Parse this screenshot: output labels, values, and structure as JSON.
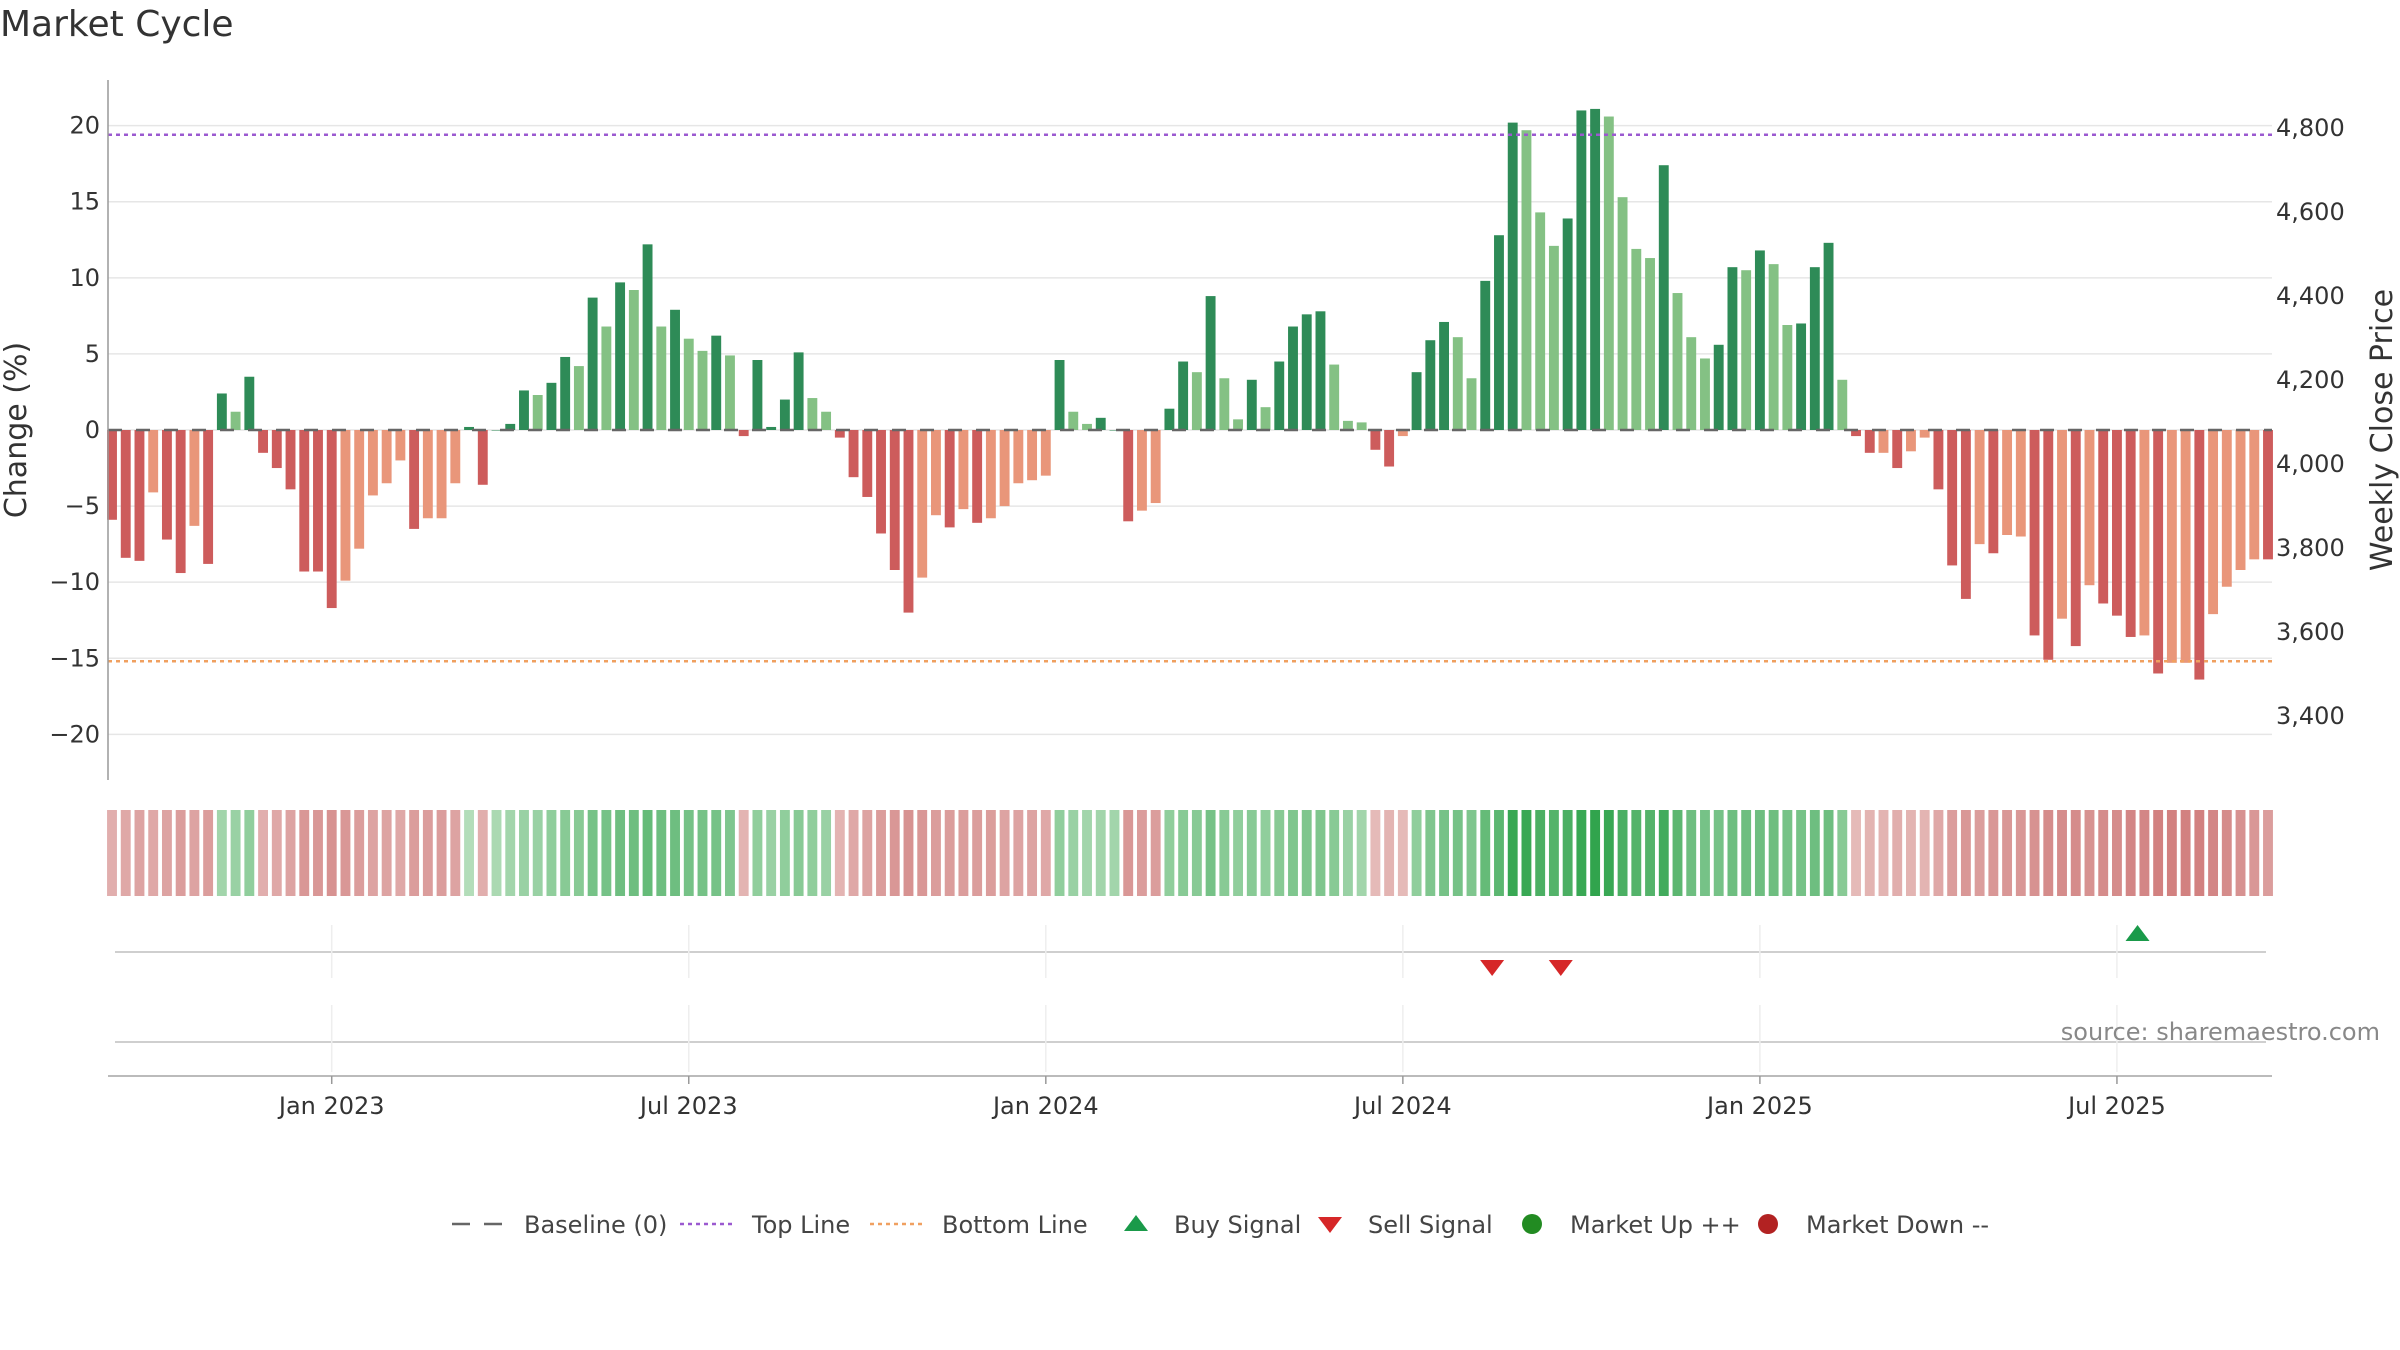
{
  "title": "Market Cycle",
  "source": "source: sharemaestro.com",
  "colors": {
    "up_strong": "#2e8b57",
    "up_light": "#84c184",
    "down_strong": "#cd5c5c",
    "down_light": "#e9967a",
    "top_line": "#9b59d0",
    "bottom_line": "#f0a060",
    "baseline": "#666666",
    "buy": "#1a9a4a",
    "sell": "#d62728",
    "market_up": "#228b22",
    "market_down": "#b22222"
  },
  "chart_data": {
    "type": "bar",
    "left_axis": {
      "title": "Change (%)",
      "ticks": [
        20,
        15,
        10,
        5,
        0,
        -5,
        -10,
        -15,
        -20
      ],
      "tick_labels": [
        "20",
        "15",
        "10",
        "5",
        "0",
        "−5",
        "−10",
        "−15",
        "−20"
      ],
      "range": [
        -23,
        23
      ]
    },
    "right_axis": {
      "title": "Weekly Close Price",
      "tick_labels": [
        "4,800",
        "4,600",
        "4,400",
        "4,200",
        "4,000",
        "3,800",
        "3,600",
        "3,400"
      ]
    },
    "x_tick_labels": [
      "Jan 2023",
      "Jul 2023",
      "Jan 2024",
      "Jul 2024",
      "Jan 2025",
      "Jul 2025"
    ],
    "x_tick_weeks": [
      16,
      42,
      68,
      94,
      120,
      146
    ],
    "top_line": 19.4,
    "bottom_line": -15.2,
    "weekly_change": [
      -5.9,
      -8.4,
      -8.6,
      -4.1,
      -7.2,
      -9.4,
      -6.3,
      -8.8,
      2.4,
      1.2,
      3.5,
      -1.5,
      -2.5,
      -3.9,
      -9.3,
      -9.3,
      -11.7,
      -9.9,
      -7.8,
      -4.3,
      -3.5,
      -2.0,
      -6.5,
      -5.8,
      -5.8,
      -3.5,
      0.2,
      -3.6,
      0,
      0.4,
      2.6,
      2.3,
      3.1,
      4.8,
      4.2,
      8.7,
      6.8,
      9.7,
      9.2,
      12.2,
      6.8,
      7.9,
      6.0,
      5.2,
      6.2,
      4.9,
      -0.4,
      4.6,
      0.2,
      2.0,
      5.1,
      2.1,
      1.2,
      -0.5,
      -3.1,
      -4.4,
      -6.8,
      -9.2,
      -12.0,
      -9.7,
      -5.6,
      -6.4,
      -5.2,
      -6.1,
      -5.8,
      -5.0,
      -3.5,
      -3.3,
      -3.0,
      4.6,
      1.2,
      0.4,
      0.8,
      0,
      -6.0,
      -5.3,
      -4.8,
      1.4,
      4.5,
      3.8,
      8.8,
      3.4,
      0.7,
      3.3,
      1.5,
      4.5,
      6.8,
      7.6,
      7.8,
      4.3,
      0.6,
      0.5,
      -1.3,
      -2.4,
      -0.4,
      3.8,
      5.9,
      7.1,
      6.1,
      3.4,
      9.8,
      12.8,
      20.2,
      19.7,
      14.3,
      12.1,
      13.9,
      21.0,
      21.1,
      20.6,
      15.3,
      11.9,
      11.3,
      17.4,
      9.0,
      6.1,
      4.7,
      5.6,
      10.7,
      10.5,
      11.8,
      10.9,
      6.9,
      7.0,
      10.7,
      12.3,
      3.3,
      -0.4,
      -1.5,
      -1.5,
      -2.5,
      -1.4,
      -0.5,
      -3.9,
      -8.9,
      -11.1,
      -7.5,
      -8.1,
      -6.9,
      -7.0,
      -13.5,
      -15.1,
      -12.4,
      -14.2,
      -10.2,
      -11.4,
      -12.2,
      -13.6,
      -13.5,
      -16.0,
      -15.3,
      -15.3,
      -16.4,
      -12.1,
      -10.3,
      -9.2,
      -8.5,
      -8.5
    ],
    "weekly_shade": [
      "s",
      "s",
      "s",
      "l",
      "s",
      "s",
      "l",
      "s",
      "s",
      "l",
      "s",
      "s",
      "s",
      "s",
      "s",
      "s",
      "s",
      "l",
      "l",
      "l",
      "l",
      "l",
      "s",
      "l",
      "l",
      "l",
      "s",
      "s",
      "s",
      "s",
      "s",
      "l",
      "s",
      "s",
      "l",
      "s",
      "l",
      "s",
      "l",
      "s",
      "l",
      "s",
      "l",
      "l",
      "s",
      "l",
      "s",
      "s",
      "s",
      "s",
      "s",
      "l",
      "l",
      "s",
      "s",
      "s",
      "s",
      "s",
      "s",
      "l",
      "l",
      "s",
      "l",
      "s",
      "l",
      "l",
      "l",
      "l",
      "l",
      "s",
      "l",
      "l",
      "s",
      "s",
      "s",
      "l",
      "l",
      "s",
      "s",
      "l",
      "s",
      "l",
      "l",
      "s",
      "l",
      "s",
      "s",
      "s",
      "s",
      "l",
      "l",
      "l",
      "s",
      "s",
      "l",
      "s",
      "s",
      "s",
      "l",
      "l",
      "s",
      "s",
      "s",
      "l",
      "l",
      "l",
      "s",
      "s",
      "s",
      "l",
      "l",
      "l",
      "l",
      "s",
      "l",
      "l",
      "l",
      "s",
      "s",
      "l",
      "s",
      "l",
      "l",
      "s",
      "s",
      "s",
      "l",
      "s",
      "s",
      "l",
      "s",
      "l",
      "l",
      "s",
      "s",
      "s",
      "l",
      "s",
      "l",
      "l",
      "s",
      "s",
      "l",
      "s",
      "l",
      "s",
      "s",
      "s",
      "l",
      "s",
      "l",
      "l",
      "s",
      "l",
      "l",
      "l",
      "l",
      "s"
    ],
    "heat_strip": [
      -0.35,
      -0.4,
      -0.45,
      -0.4,
      -0.45,
      -0.5,
      -0.45,
      -0.5,
      0.3,
      0.35,
      0.4,
      -0.35,
      -0.4,
      -0.45,
      -0.55,
      -0.55,
      -0.6,
      -0.55,
      -0.5,
      -0.45,
      -0.45,
      -0.4,
      -0.5,
      -0.5,
      -0.5,
      -0.45,
      0.2,
      -0.35,
      0.25,
      0.3,
      0.35,
      0.35,
      0.4,
      0.45,
      0.45,
      0.55,
      0.55,
      0.6,
      0.6,
      0.65,
      0.6,
      0.6,
      0.55,
      0.55,
      0.55,
      0.5,
      -0.3,
      0.4,
      0.35,
      0.4,
      0.45,
      0.4,
      0.35,
      -0.3,
      -0.4,
      -0.45,
      -0.5,
      -0.55,
      -0.6,
      -0.55,
      -0.5,
      -0.5,
      -0.5,
      -0.5,
      -0.5,
      -0.45,
      -0.45,
      -0.45,
      -0.4,
      0.4,
      0.35,
      0.3,
      0.3,
      0.3,
      -0.55,
      -0.5,
      -0.5,
      0.4,
      0.45,
      0.45,
      0.55,
      0.45,
      0.4,
      0.45,
      0.4,
      0.45,
      0.5,
      0.5,
      0.5,
      0.45,
      0.35,
      0.3,
      -0.25,
      -0.3,
      -0.25,
      0.4,
      0.5,
      0.55,
      0.55,
      0.5,
      0.65,
      0.7,
      0.9,
      0.9,
      0.8,
      0.75,
      0.8,
      0.9,
      0.95,
      0.9,
      0.8,
      0.75,
      0.75,
      0.85,
      0.7,
      0.6,
      0.55,
      0.55,
      0.6,
      0.6,
      0.6,
      0.6,
      0.55,
      0.55,
      0.6,
      0.6,
      0.45,
      -0.25,
      -0.3,
      -0.3,
      -0.35,
      -0.3,
      -0.3,
      -0.4,
      -0.5,
      -0.55,
      -0.5,
      -0.55,
      -0.55,
      -0.55,
      -0.6,
      -0.65,
      -0.65,
      -0.65,
      -0.6,
      -0.65,
      -0.65,
      -0.7,
      -0.7,
      -0.75,
      -0.75,
      -0.75,
      -0.75,
      -0.7,
      -0.65,
      -0.6,
      -0.55,
      -0.5
    ],
    "buy_signals": [
      147.5
    ],
    "sell_signals": [
      100.5,
      105.5
    ]
  },
  "legend": [
    {
      "label": "Baseline (0)",
      "marker": "dash"
    },
    {
      "label": "Top Line",
      "marker": "dot-purple"
    },
    {
      "label": "Bottom Line",
      "marker": "dot-orange"
    },
    {
      "label": "Buy Signal",
      "marker": "triangle-up"
    },
    {
      "label": "Sell Signal",
      "marker": "triangle-down"
    },
    {
      "label": "Market Up ++",
      "marker": "circle-green"
    },
    {
      "label": "Market Down --",
      "marker": "circle-red"
    }
  ]
}
